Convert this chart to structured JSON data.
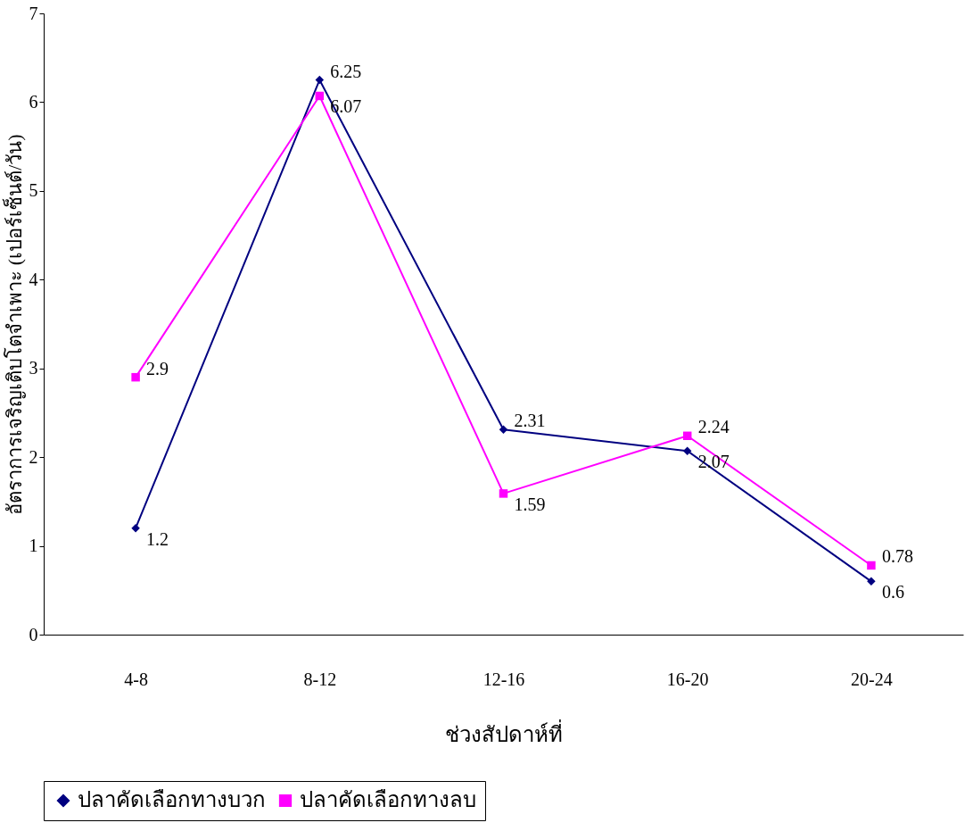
{
  "chart_data": {
    "type": "line",
    "xlabel": "ช่วงสัปดาห์ที่",
    "ylabel": "อัตราการเจริญเติบโตจำเพาะ (เปอร์เซ็นต์/วัน)",
    "categories": [
      "4-8",
      "8-12",
      "12-16",
      "16-20",
      "20-24"
    ],
    "series": [
      {
        "name": "ปลาคัดเลือกทางบวก",
        "color": "#000080",
        "marker": "diamond",
        "values": [
          1.2,
          6.25,
          2.31,
          2.07,
          0.6
        ]
      },
      {
        "name": "ปลาคัดเลือกทางลบ",
        "color": "#ff00ff",
        "marker": "square",
        "values": [
          2.9,
          6.07,
          1.59,
          2.24,
          0.78
        ]
      }
    ],
    "ylim": [
      0,
      7
    ],
    "yticks": [
      0,
      1,
      2,
      3,
      4,
      5,
      6,
      7
    ],
    "grid": false,
    "legend": "bottom",
    "data_labels": true,
    "line_style": "solid"
  }
}
